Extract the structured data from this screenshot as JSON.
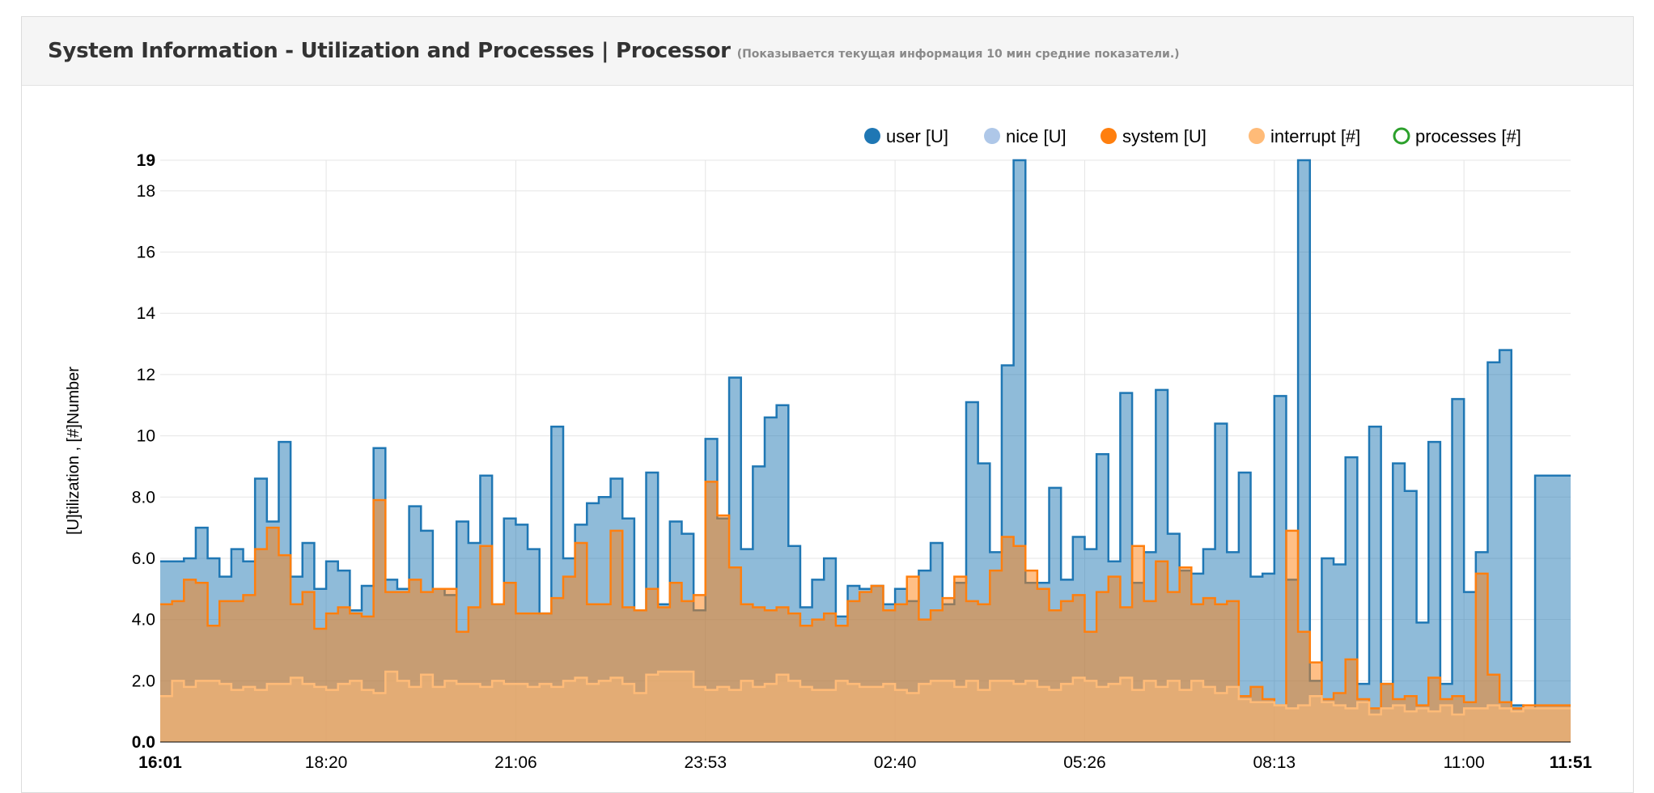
{
  "panel": {
    "title": "System Information - Utilization and Processes | Processor",
    "subtitle": "(Показывается текущая информация 10 мин средние показатели.)"
  },
  "legend": [
    {
      "key": "user",
      "label": "user [U]",
      "color": "#1f77b4",
      "filled": true
    },
    {
      "key": "nice",
      "label": "nice [U]",
      "color": "#aec7e8",
      "filled": true
    },
    {
      "key": "system",
      "label": "system [U]",
      "color": "#ff7f0e",
      "filled": true
    },
    {
      "key": "interrupt",
      "label": "interrupt [#]",
      "color": "#ffbb78",
      "filled": true
    },
    {
      "key": "processes",
      "label": "processes [#]",
      "color": "#2ca02c",
      "filled": false
    }
  ],
  "chart_data": {
    "type": "area",
    "step": true,
    "ylabel": "[U]tilization , [#]Number",
    "ylim": [
      0,
      19
    ],
    "yticks": [
      0,
      2,
      4,
      6,
      8,
      10,
      12,
      14,
      16,
      18,
      19
    ],
    "ytick_labels": [
      "0.0",
      "2.0",
      "4.0",
      "6.0",
      "8.0",
      "10",
      "12",
      "14",
      "16",
      "18",
      "19"
    ],
    "xlim": [
      0,
      119
    ],
    "xticks": [
      {
        "pos": 0,
        "label": "16:01",
        "bold": true
      },
      {
        "pos": 14,
        "label": "18:20",
        "bold": false
      },
      {
        "pos": 30,
        "label": "21:06",
        "bold": false
      },
      {
        "pos": 46,
        "label": "23:53",
        "bold": false
      },
      {
        "pos": 62,
        "label": "02:40",
        "bold": false
      },
      {
        "pos": 78,
        "label": "05:26",
        "bold": false
      },
      {
        "pos": 94,
        "label": "08:13",
        "bold": false
      },
      {
        "pos": 110,
        "label": "11:00",
        "bold": false
      },
      {
        "pos": 119,
        "label": "11:51",
        "bold": true
      }
    ],
    "grid": true,
    "legend_position": "top-right",
    "series": [
      {
        "name": "user [U]",
        "color": "#1f77b4",
        "values": [
          5.9,
          5.9,
          6.0,
          7.0,
          6.0,
          5.4,
          6.3,
          5.9,
          8.6,
          7.2,
          9.8,
          5.4,
          6.5,
          5.0,
          5.9,
          5.6,
          4.3,
          5.1,
          9.6,
          5.3,
          5.0,
          7.7,
          6.9,
          5.0,
          4.8,
          7.2,
          6.5,
          8.7,
          4.5,
          7.3,
          7.1,
          6.3,
          4.2,
          10.3,
          6.0,
          7.1,
          7.8,
          8.0,
          8.6,
          7.3,
          4.3,
          8.8,
          4.5,
          7.2,
          6.8,
          4.3,
          9.9,
          7.3,
          11.9,
          6.3,
          9.0,
          10.6,
          11.0,
          6.4,
          4.4,
          5.3,
          6.0,
          4.1,
          5.1,
          5.0,
          5.1,
          4.5,
          5.0,
          4.6,
          5.6,
          6.5,
          4.5,
          5.2,
          11.1,
          9.1,
          6.2,
          12.3,
          19.0,
          5.2,
          5.2,
          8.3,
          5.3,
          6.7,
          6.3,
          9.4,
          5.9,
          11.4,
          5.2,
          6.2,
          11.5,
          6.8,
          5.6,
          5.5,
          6.3,
          10.4,
          6.2,
          8.8,
          5.4,
          5.5,
          11.3,
          5.3,
          19.0,
          2.0,
          6.0,
          5.8,
          9.3,
          1.9,
          10.3,
          1.9,
          9.1,
          8.2,
          3.9,
          9.8,
          1.9,
          11.2,
          4.9,
          6.2,
          12.4,
          12.8,
          1.2,
          1.1,
          8.7,
          8.7,
          8.7
        ]
      },
      {
        "name": "system [U]",
        "color": "#ff7f0e",
        "values": [
          4.5,
          4.6,
          5.3,
          5.2,
          3.8,
          4.6,
          4.6,
          4.8,
          6.3,
          7.0,
          6.1,
          4.5,
          4.9,
          3.7,
          4.2,
          4.4,
          4.2,
          4.1,
          7.9,
          4.9,
          4.9,
          5.3,
          4.9,
          5.0,
          5.0,
          3.6,
          4.4,
          6.4,
          4.5,
          5.2,
          4.2,
          4.2,
          4.2,
          4.7,
          5.4,
          6.5,
          4.5,
          4.5,
          6.9,
          4.4,
          4.3,
          5.0,
          4.4,
          5.2,
          4.6,
          4.8,
          8.5,
          7.4,
          5.7,
          4.5,
          4.4,
          4.3,
          4.4,
          4.2,
          3.8,
          4.0,
          4.2,
          3.8,
          4.6,
          4.9,
          5.1,
          4.3,
          4.5,
          5.4,
          4.0,
          4.3,
          4.7,
          5.4,
          4.6,
          4.5,
          5.6,
          6.7,
          6.4,
          5.6,
          5.0,
          4.3,
          4.6,
          4.8,
          3.6,
          4.9,
          5.4,
          4.4,
          6.4,
          4.6,
          5.9,
          4.9,
          5.7,
          4.5,
          4.7,
          4.5,
          4.6,
          1.5,
          1.8,
          1.4,
          1.2,
          6.9,
          3.6,
          2.6,
          1.4,
          1.6,
          2.7,
          1.4,
          1.1,
          1.9,
          1.4,
          1.5,
          1.2,
          2.1,
          1.4,
          1.5,
          1.3,
          5.5,
          2.2,
          1.3,
          1.1,
          1.2,
          1.2,
          1.2,
          1.2
        ]
      },
      {
        "name": "interrupt [#]",
        "color": "#ffbb78",
        "values": [
          1.5,
          2.0,
          1.8,
          2.0,
          2.0,
          1.9,
          1.7,
          1.8,
          1.7,
          1.9,
          1.9,
          2.1,
          1.9,
          1.8,
          1.7,
          1.9,
          2.0,
          1.7,
          1.6,
          2.3,
          2.0,
          1.8,
          2.2,
          1.8,
          2.0,
          1.9,
          1.9,
          1.8,
          2.0,
          1.9,
          1.9,
          1.8,
          1.9,
          1.8,
          2.0,
          2.1,
          1.9,
          2.0,
          2.1,
          1.9,
          1.6,
          2.2,
          2.3,
          2.3,
          2.3,
          1.8,
          1.7,
          1.8,
          1.7,
          2.0,
          1.8,
          1.9,
          2.2,
          2.0,
          1.8,
          1.7,
          1.7,
          2.0,
          1.9,
          1.8,
          1.8,
          1.9,
          1.7,
          1.6,
          1.9,
          2.0,
          2.0,
          1.8,
          2.0,
          1.7,
          2.0,
          2.0,
          1.9,
          2.0,
          1.8,
          1.7,
          1.9,
          2.1,
          2.0,
          1.8,
          1.9,
          2.1,
          1.7,
          2.0,
          1.8,
          2.0,
          1.7,
          2.0,
          1.8,
          1.6,
          1.8,
          1.4,
          1.3,
          1.3,
          1.2,
          1.1,
          1.2,
          1.5,
          1.3,
          1.2,
          1.1,
          1.3,
          0.9,
          1.1,
          1.2,
          1.0,
          1.1,
          1.0,
          1.2,
          0.9,
          1.1,
          1.1,
          1.2,
          1.1,
          1.0,
          1.1,
          1.1,
          1.1,
          1.1
        ]
      }
    ]
  }
}
